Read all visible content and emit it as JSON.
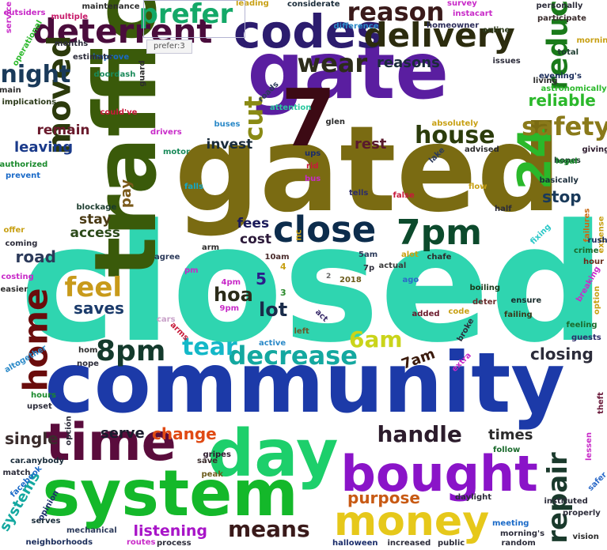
{
  "chart_data": {
    "type": "wordcloud",
    "tooltip": "prefer:3",
    "words": [
      {
        "text": "closed",
        "color": "#2fd5b0"
      },
      {
        "text": "gated",
        "color": "#7a6b12"
      },
      {
        "text": "community",
        "color": "#1c3aa8"
      },
      {
        "text": "traffic",
        "color": "#3a5a0a"
      },
      {
        "text": "gate",
        "color": "#5a1ea0"
      },
      {
        "text": "day",
        "color": "#1dcf6b"
      },
      {
        "text": "system",
        "color": "#14b82a"
      },
      {
        "text": "time",
        "color": "#5a0c3c"
      },
      {
        "text": "bought",
        "color": "#8a14c8"
      },
      {
        "text": "money",
        "color": "#e6c81a"
      },
      {
        "text": "7",
        "color": "#3c0a14"
      },
      {
        "text": "codes",
        "color": "#2c1c6e"
      },
      {
        "text": "delivery",
        "color": "#2c2c0e"
      },
      {
        "text": "deterrent",
        "color": "#4a0c3c"
      },
      {
        "text": "moved",
        "color": "#2c3a0c"
      },
      {
        "text": "reduce",
        "color": "#1a7a1a"
      },
      {
        "text": "24",
        "color": "#2ab82a"
      },
      {
        "text": "close",
        "color": "#0c2c4c"
      },
      {
        "text": "7pm",
        "color": "#0c4a2c"
      },
      {
        "text": "8pm",
        "color": "#143a2c"
      },
      {
        "text": "decrease",
        "color": "#14a8a0"
      },
      {
        "text": "home",
        "color": "#6a0c0c"
      },
      {
        "text": "feel",
        "color": "#c89a1a"
      },
      {
        "text": "prefer",
        "color": "#14a868"
      },
      {
        "text": "reason",
        "color": "#3a1a1a"
      },
      {
        "text": "safety",
        "color": "#8a7a1a"
      },
      {
        "text": "house",
        "color": "#2c3c0c"
      },
      {
        "text": "night",
        "color": "#1a3a5a"
      },
      {
        "text": "cut",
        "color": "#8a8a14"
      },
      {
        "text": "wear",
        "color": "#2c2c1a"
      },
      {
        "text": "tear",
        "color": "#14b8c8"
      },
      {
        "text": "6am",
        "color": "#cad41a"
      },
      {
        "text": "handle",
        "color": "#2c1c2c"
      },
      {
        "text": "repair",
        "color": "#1a3a2c"
      },
      {
        "text": "means",
        "color": "#3a1a1a"
      },
      {
        "text": "change",
        "color": "#e04a14"
      },
      {
        "text": "purpose",
        "color": "#c85a14"
      },
      {
        "text": "listening",
        "color": "#a814c8"
      },
      {
        "text": "serve",
        "color": "#1a1a2c"
      },
      {
        "text": "single",
        "color": "#3a2c2c"
      },
      {
        "text": "road",
        "color": "#2c3a5a"
      },
      {
        "text": "access",
        "color": "#2c4a1a"
      },
      {
        "text": "stay",
        "color": "#4a3a14"
      },
      {
        "text": "pay",
        "color": "#7a5a1a"
      },
      {
        "text": "leaving",
        "color": "#1a3a8a"
      },
      {
        "text": "remain",
        "color": "#6a1a2c"
      },
      {
        "text": "invest",
        "color": "#1a2c3a"
      },
      {
        "text": "fees",
        "color": "#1a1a5a"
      },
      {
        "text": "cost",
        "color": "#2c1a3a"
      },
      {
        "text": "hoa",
        "color": "#2c2c1a"
      },
      {
        "text": "saves",
        "color": "#1a3a6a"
      },
      {
        "text": "lot",
        "color": "#1a2c4a"
      },
      {
        "text": "5",
        "color": "#2c1c8a"
      },
      {
        "text": "closing",
        "color": "#2c2c3a"
      },
      {
        "text": "stop",
        "color": "#1a3a5a"
      },
      {
        "text": "7am",
        "color": "#3a1a0c"
      },
      {
        "text": "times",
        "color": "#2c2c2c"
      },
      {
        "text": "reliable",
        "color": "#2ab82a"
      },
      {
        "text": "rest",
        "color": "#5a1a2c"
      },
      {
        "text": "reasons",
        "color": "#1a2c3a"
      },
      {
        "text": "systems",
        "color": "#14a8a0"
      },
      {
        "text": "nc",
        "color": "#c8a014"
      },
      {
        "text": "3",
        "color": "#2a8a2a"
      },
      {
        "text": "4",
        "color": "#c8a014"
      },
      {
        "text": "2",
        "color": "#666666"
      },
      {
        "text": "4pm",
        "color": "#c82ac8"
      },
      {
        "text": "9pm",
        "color": "#c82ac8"
      },
      {
        "text": "10am",
        "color": "#4a2c2c"
      },
      {
        "text": "5am",
        "color": "#2c3a5a"
      },
      {
        "text": "7p",
        "color": "#2c2c3a"
      },
      {
        "text": "2018",
        "color": "#6a5a1a"
      },
      {
        "text": "ago",
        "color": "#2c6ac8"
      },
      {
        "text": "boiling",
        "color": "#1a3a1a"
      },
      {
        "text": "deter",
        "color": "#6a2c2c"
      },
      {
        "text": "added",
        "color": "#6a1a2c"
      },
      {
        "text": "code",
        "color": "#c8a014"
      },
      {
        "text": "broke",
        "color": "#2c2c3a"
      },
      {
        "text": "act",
        "color": "#3a2c6a"
      },
      {
        "text": "left",
        "color": "#6a5a2c"
      },
      {
        "text": "active",
        "color": "#2c8ac8"
      },
      {
        "text": "arms",
        "color": "#c81a3a"
      },
      {
        "text": "cars",
        "color": "#c8a0c8"
      },
      {
        "text": "arm",
        "color": "#2c2c2c"
      },
      {
        "text": "agree",
        "color": "#2c3a5a"
      },
      {
        "text": "pm",
        "color": "#c82ac8"
      },
      {
        "text": "actual",
        "color": "#3a3a3a"
      },
      {
        "text": "alot",
        "color": "#c8a014"
      },
      {
        "text": "chafe",
        "color": "#2c2c2c"
      },
      {
        "text": "blockage",
        "color": "#1a3a2c"
      },
      {
        "text": "falls",
        "color": "#14a8c8"
      },
      {
        "text": "motor",
        "color": "#1a8a5a"
      },
      {
        "text": "drivers",
        "color": "#c82ac8"
      },
      {
        "text": "buses",
        "color": "#2c8ac8"
      },
      {
        "text": "glen",
        "color": "#2c2c2c"
      },
      {
        "text": "ups",
        "color": "#1a2c6a"
      },
      {
        "text": "rid",
        "color": "#c81a3a"
      },
      {
        "text": "bus",
        "color": "#c82ac8"
      },
      {
        "text": "tells",
        "color": "#2c2c6a"
      },
      {
        "text": "false",
        "color": "#c81a3a"
      },
      {
        "text": "flow",
        "color": "#c8a014"
      },
      {
        "text": "lake",
        "color": "#2c3a5a"
      },
      {
        "text": "advised",
        "color": "#2c2c2c"
      },
      {
        "text": "basically",
        "color": "#1a2c3a"
      },
      {
        "text": "half",
        "color": "#2c2c3a"
      },
      {
        "text": "fixing",
        "color": "#2cc8c8"
      },
      {
        "text": "failures",
        "color": "#c86a14"
      },
      {
        "text": "expense",
        "color": "#c8a014"
      },
      {
        "text": "crime",
        "color": "#1a6a2c"
      },
      {
        "text": "hour",
        "color": "#6a2c1a"
      },
      {
        "text": "breaking",
        "color": "#c82ac8"
      },
      {
        "text": "option",
        "color": "#c8a014"
      },
      {
        "text": "ensure",
        "color": "#1a2c2c"
      },
      {
        "text": "failing",
        "color": "#3a3a1a"
      },
      {
        "text": "feeling",
        "color": "#1a6a2c"
      },
      {
        "text": "guests",
        "color": "#2c2c6a"
      },
      {
        "text": "hopes",
        "color": "#1a3a2c"
      },
      {
        "text": "giving",
        "color": "#2c1a2c"
      },
      {
        "text": "legal",
        "color": "#1a8a2c"
      },
      {
        "text": "rush",
        "color": "#1a2c5a"
      },
      {
        "text": "living",
        "color": "#2c2c2c"
      },
      {
        "text": "evening's",
        "color": "#1a2c5a"
      },
      {
        "text": "astronomically",
        "color": "#2ab82a"
      },
      {
        "text": "issues",
        "color": "#2c2c3a"
      },
      {
        "text": "total",
        "color": "#1a3a2c"
      },
      {
        "text": "morning",
        "color": "#c8a014"
      },
      {
        "text": "participate",
        "color": "#3a2c2c"
      },
      {
        "text": "personally",
        "color": "#2c2c3a"
      },
      {
        "text": "online",
        "color": "#2c3a1a"
      },
      {
        "text": "homeowner",
        "color": "#2c2c5a"
      },
      {
        "text": "instacart",
        "color": "#c82ac8"
      },
      {
        "text": "survey",
        "color": "#c82ac8"
      },
      {
        "text": "total",
        "color": "#1a3a2c"
      },
      {
        "text": "difference",
        "color": "#2c8ac8"
      },
      {
        "text": "considerate",
        "color": "#1a2c3a"
      },
      {
        "text": "leading",
        "color": "#c8a014"
      },
      {
        "text": "improve",
        "color": "#1a6ac8"
      },
      {
        "text": "maintenance",
        "color": "#2c2c2c"
      },
      {
        "text": "multiple",
        "color": "#c81a6a"
      },
      {
        "text": "outsiders",
        "color": "#c82ac8"
      },
      {
        "text": "service",
        "color": "#c82ac8"
      },
      {
        "text": "operational",
        "color": "#2ab82a"
      },
      {
        "text": "months",
        "color": "#2c2c3a"
      },
      {
        "text": "estimate",
        "color": "#2c2c3a"
      },
      {
        "text": "guard",
        "color": "#2c2c2c"
      },
      {
        "text": "doordash",
        "color": "#1a8a5a"
      },
      {
        "text": "main",
        "color": "#2c2c2c"
      },
      {
        "text": "implications",
        "color": "#2c3a1a"
      },
      {
        "text": "could've",
        "color": "#c81a3a"
      },
      {
        "text": "roads",
        "color": "#2c3a5a"
      },
      {
        "text": "attention",
        "color": "#2cc8a0"
      },
      {
        "text": "absolutely",
        "color": "#c8a014"
      },
      {
        "text": "authorized",
        "color": "#1a8a2c"
      },
      {
        "text": "prevent",
        "color": "#1a6ac8"
      },
      {
        "text": "offer",
        "color": "#c8a014"
      },
      {
        "text": "coming",
        "color": "#2c2c3a"
      },
      {
        "text": "costing",
        "color": "#c82ac8"
      },
      {
        "text": "easier",
        "color": "#2c2c2c"
      },
      {
        "text": "altogether",
        "color": "#2c8ac8"
      },
      {
        "text": "hom",
        "color": "#2c2c2c"
      },
      {
        "text": "nope",
        "color": "#2c2c3a"
      },
      {
        "text": "extra",
        "color": "#c82ac8"
      },
      {
        "text": "hours",
        "color": "#1a8a2c"
      },
      {
        "text": "upset",
        "color": "#2c2c3a"
      },
      {
        "text": "opción",
        "color": "#2c2c3a"
      },
      {
        "text": "car.anybody",
        "color": "#1a2c3a"
      },
      {
        "text": "match",
        "color": "#2c2c3a"
      },
      {
        "text": "facebook",
        "color": "#1a6ac8"
      },
      {
        "text": "opinion",
        "color": "#1a2c6a"
      },
      {
        "text": "serves",
        "color": "#1a2c3a"
      },
      {
        "text": "neighborhoods",
        "color": "#1a2c5a"
      },
      {
        "text": "mechanical",
        "color": "#2c3a5a"
      },
      {
        "text": "routes",
        "color": "#c82ac8"
      },
      {
        "text": "process",
        "color": "#2c2c3a"
      },
      {
        "text": "gripes",
        "color": "#2c1a2c"
      },
      {
        "text": "save",
        "color": "#3a2c2c"
      },
      {
        "text": "peak",
        "color": "#6a5a1a"
      },
      {
        "text": "follow",
        "color": "#1a6a2c"
      },
      {
        "text": "daylight",
        "color": "#2c2c3a"
      },
      {
        "text": "instituted",
        "color": "#2c2c3a"
      },
      {
        "text": "properly",
        "color": "#2c2c3a"
      },
      {
        "text": "meeting",
        "color": "#1a6ac8"
      },
      {
        "text": "morning's",
        "color": "#2c2c3a"
      },
      {
        "text": "theft",
        "color": "#6a1a3a"
      },
      {
        "text": "lessen",
        "color": "#c82ac8"
      },
      {
        "text": "safer",
        "color": "#2c6ac8"
      },
      {
        "text": "halloween",
        "color": "#1a2c6a"
      },
      {
        "text": "increased",
        "color": "#2c2c3a"
      },
      {
        "text": "public",
        "color": "#2c2c3a"
      },
      {
        "text": "random",
        "color": "#2c2c3a"
      },
      {
        "text": "vision",
        "color": "#2c2c2c"
      }
    ]
  }
}
